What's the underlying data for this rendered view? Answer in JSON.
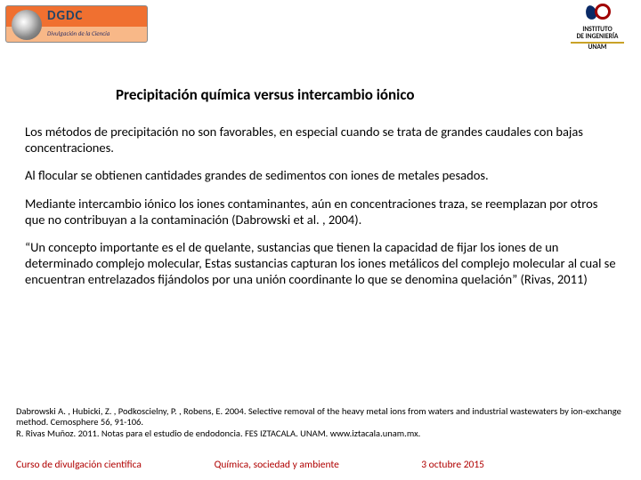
{
  "logo_left": {
    "main": "DGDC",
    "sub": "Divulgación de la Ciencia"
  },
  "logo_right": {
    "line1": "INSTITUTO",
    "line2": "DE INGENIERÍA",
    "line3": "UNAM"
  },
  "title": "Precipitación química versus intercambio iónico",
  "paragraphs": [
    "Los métodos de precipitación no son favorables, en especial cuando se trata de grandes caudales con bajas concentraciones.",
    "Al flocular se obtienen cantidades grandes de sedimentos con iones de metales pesados.",
    "Mediante intercambio iónico los iones contaminantes, aún en concentraciones traza, se reemplazan por otros que no contribuyan a la contaminación (Dabrowski et al. , 2004).",
    "“Un concepto importante es el de quelante, sustancias que tienen la capacidad de fijar los iones de un determinado complejo molecular, Estas sustancias capturan los iones metálicos del complejo molecular al cual se encuentran entrelazados fijándolos por una unión coordinante lo que se denomina quelación” (Rivas, 2011)"
  ],
  "references": [
    "Dabrowski A. , Hubicki, Z. , Podkoscielny, P. , Robens, E. 2004. Selective removal of the heavy metal ions from waters and industrial wastewaters by ion-exchange method. Cemosphere 56, 91-106.",
    "R. Rivas Muñoz. 2011. Notas para el estudio de endodoncia. FES IZTACALA. UNAM.  www.iztacala.unam.mx."
  ],
  "footer": {
    "left": "Curso de divulgación científica",
    "center": "Química, sociedad y ambiente",
    "right": "3 octubre 2015"
  },
  "colors": {
    "footer_text": "#b00000",
    "body_text": "#000000",
    "background": "#ffffff"
  }
}
